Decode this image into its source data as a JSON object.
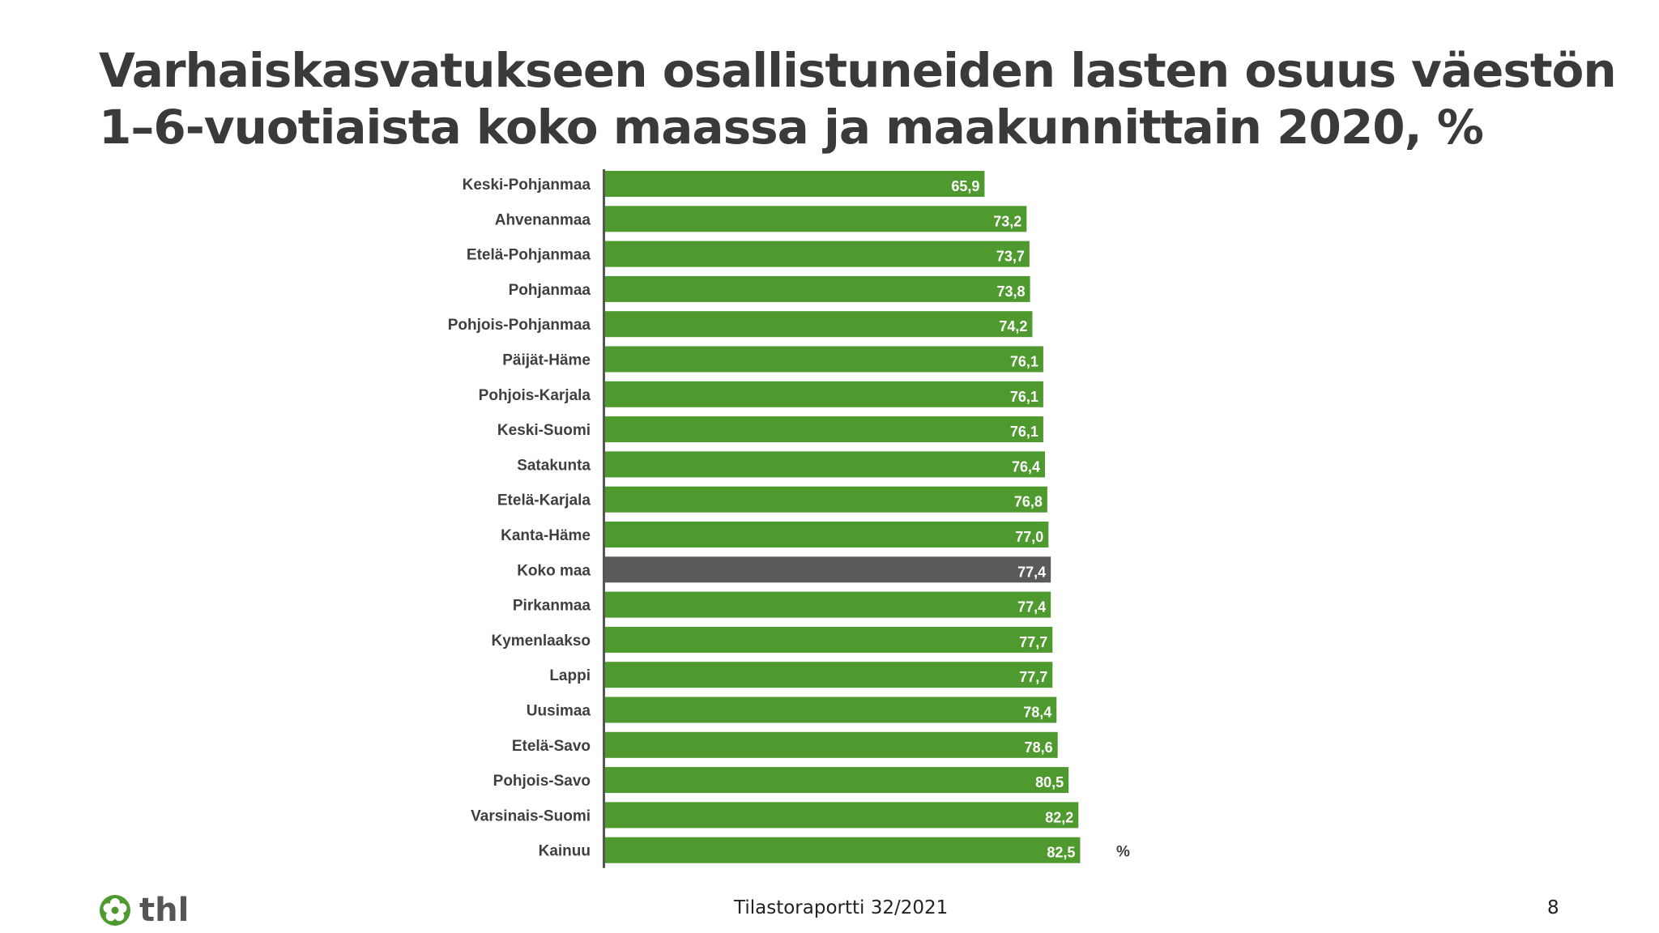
{
  "title_lines": [
    "Varhaiskasvatukseen osallistuneiden lasten osuus väestön",
    "1–6-vuotiaista koko maassa ja maakunnittain 2020, %"
  ],
  "footer": {
    "report": "Tilastoraportti 32/2021",
    "page_number": "8",
    "logo_text": "thl"
  },
  "colors": {
    "bar": "#4e9a2e",
    "highlight_bar": "#5a5a5a",
    "title": "#3a3a3a",
    "label": "#3f3f3f",
    "logo_green": "#4e9a2e"
  },
  "chart_data": {
    "type": "bar",
    "orientation": "horizontal",
    "unit_label": "%",
    "categories": [
      "Keski-Pohjanmaa",
      "Ahvenanmaa",
      "Etelä-Pohjanmaa",
      "Pohjanmaa",
      "Pohjois-Pohjanmaa",
      "Päijät-Häme",
      "Pohjois-Karjala",
      "Keski-Suomi",
      "Satakunta",
      "Etelä-Karjala",
      "Kanta-Häme",
      "Koko maa",
      "Pirkanmaa",
      "Kymenlaakso",
      "Lappi",
      "Uusimaa",
      "Etelä-Savo",
      "Pohjois-Savo",
      "Varsinais-Suomi",
      "Kainuu"
    ],
    "values": [
      65.9,
      73.2,
      73.7,
      73.8,
      74.2,
      76.1,
      76.1,
      76.1,
      76.4,
      76.8,
      77.0,
      77.4,
      77.4,
      77.7,
      77.7,
      78.4,
      78.6,
      80.5,
      82.2,
      82.5
    ],
    "value_labels": [
      "65,9",
      "73,2",
      "73,7",
      "73,8",
      "74,2",
      "76,1",
      "76,1",
      "76,1",
      "76,4",
      "76,8",
      "77,0",
      "77,4",
      "77,4",
      "77,7",
      "77,7",
      "78,4",
      "78,6",
      "80,5",
      "82,2",
      "82,5"
    ],
    "highlight_category": "Koko maa",
    "xlim": [
      0,
      100
    ],
    "grid": false,
    "legend": "none"
  }
}
